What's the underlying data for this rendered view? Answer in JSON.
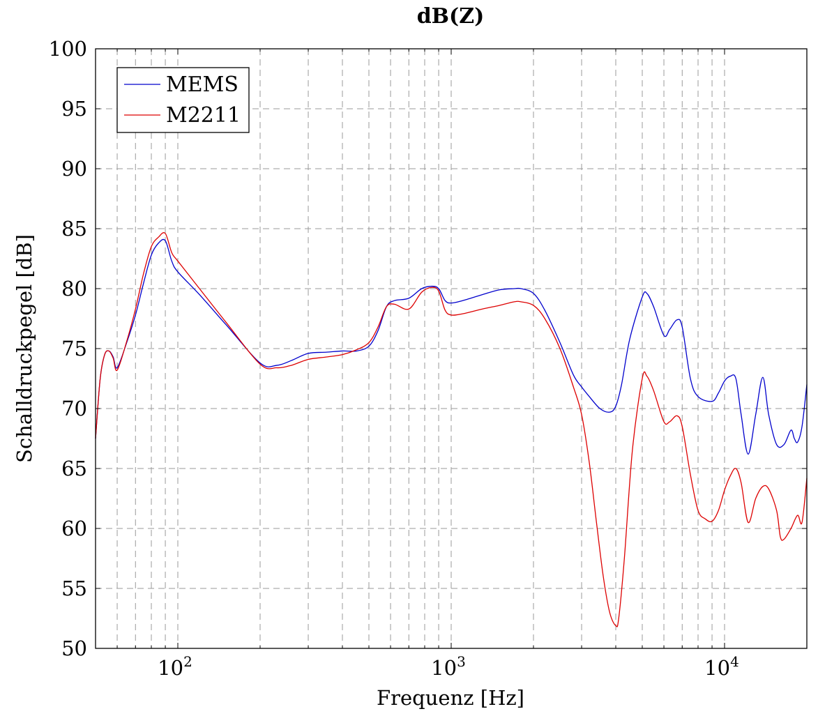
{
  "chart_data": {
    "type": "line",
    "title": "dB(Z)",
    "xlabel": "Frequenz [Hz]",
    "ylabel": "Schalldruckpegel [dB]",
    "xscale": "log",
    "xlim": [
      50,
      20000
    ],
    "ylim": [
      50,
      100
    ],
    "grid": true,
    "legend_position": "top-left",
    "y_ticks": [
      50,
      55,
      60,
      65,
      70,
      75,
      80,
      85,
      90,
      95,
      100
    ],
    "y_tick_labels": [
      "50",
      "55",
      "60",
      "65",
      "70",
      "75",
      "80",
      "85",
      "90",
      "95",
      "100"
    ],
    "x_ticks": [
      100,
      1000,
      10000
    ],
    "x_tick_labels": [
      {
        "base": "10",
        "exp": "2"
      },
      {
        "base": "10",
        "exp": "3"
      },
      {
        "base": "10",
        "exp": "4"
      }
    ],
    "series": [
      {
        "name": "MEMS",
        "color": "#0000cc",
        "x": [
          50,
          52,
          54,
          56,
          58,
          60,
          65,
          70,
          75,
          80,
          85,
          90,
          95,
          100,
          120,
          150,
          200,
          230,
          260,
          300,
          350,
          400,
          450,
          500,
          540,
          580,
          620,
          700,
          780,
          850,
          900,
          950,
          1000,
          1100,
          1300,
          1500,
          1700,
          1800,
          2000,
          2200,
          2500,
          2800,
          3000,
          3200,
          3500,
          3800,
          4000,
          4200,
          4500,
          5000,
          5200,
          5500,
          6000,
          6300,
          6700,
          7000,
          7500,
          8000,
          9000,
          9500,
          10000,
          10500,
          11000,
          11500,
          12200,
          13000,
          13800,
          14500,
          15500,
          16500,
          17500,
          18000,
          18500,
          19200,
          20000
        ],
        "y": [
          67.5,
          72.5,
          74.5,
          74.8,
          74.3,
          73.4,
          75.5,
          77.8,
          80.5,
          82.8,
          83.8,
          84.0,
          82.3,
          81.4,
          79.5,
          77.0,
          73.8,
          73.6,
          74.0,
          74.6,
          74.7,
          74.8,
          74.8,
          75.2,
          76.5,
          78.5,
          79.0,
          79.2,
          80.0,
          80.2,
          80.0,
          79.0,
          78.8,
          79.0,
          79.5,
          79.9,
          80.0,
          80.0,
          79.6,
          78.2,
          75.5,
          72.8,
          71.8,
          71.0,
          70.0,
          69.7,
          70.2,
          72.0,
          75.8,
          79.3,
          79.6,
          78.5,
          76.1,
          76.6,
          77.4,
          76.8,
          72.5,
          71.0,
          70.6,
          71.3,
          72.3,
          72.7,
          72.5,
          69.5,
          66.2,
          69.5,
          72.6,
          69.5,
          67.0,
          67.0,
          68.2,
          67.5,
          67.2,
          68.5,
          72.0
        ]
      },
      {
        "name": "M2211",
        "color": "#dd0000",
        "x": [
          50,
          52,
          54,
          56,
          58,
          60,
          65,
          70,
          75,
          80,
          85,
          90,
          95,
          100,
          120,
          150,
          200,
          230,
          260,
          300,
          350,
          400,
          450,
          500,
          540,
          580,
          620,
          700,
          780,
          850,
          900,
          950,
          1000,
          1100,
          1300,
          1500,
          1700,
          1800,
          2000,
          2200,
          2500,
          2800,
          3000,
          3200,
          3400,
          3600,
          3800,
          4000,
          4100,
          4300,
          4600,
          5000,
          5200,
          5500,
          6000,
          6300,
          6700,
          7000,
          7500,
          8000,
          8500,
          9000,
          9500,
          10000,
          10500,
          11000,
          11500,
          12200,
          13000,
          13800,
          14500,
          15500,
          16000,
          16500,
          17500,
          18500,
          19200,
          20000
        ],
        "y": [
          67.5,
          72.5,
          74.5,
          74.8,
          74.2,
          73.2,
          75.6,
          78.3,
          81.3,
          83.5,
          84.3,
          84.6,
          83.0,
          82.3,
          80.0,
          77.2,
          73.7,
          73.4,
          73.6,
          74.1,
          74.3,
          74.5,
          74.9,
          75.5,
          76.8,
          78.5,
          78.7,
          78.3,
          79.7,
          80.1,
          79.8,
          78.2,
          77.8,
          77.9,
          78.3,
          78.6,
          78.9,
          78.9,
          78.6,
          77.5,
          75.0,
          71.8,
          69.5,
          65.5,
          60.5,
          56.0,
          53.0,
          51.9,
          52.5,
          57.5,
          66.5,
          72.5,
          72.7,
          71.5,
          68.9,
          68.9,
          69.4,
          68.5,
          64.5,
          61.5,
          60.8,
          60.6,
          61.5,
          63.2,
          64.4,
          65.0,
          63.8,
          60.5,
          62.5,
          63.5,
          63.3,
          61.5,
          59.3,
          59.1,
          60.0,
          61.1,
          60.5,
          64.2
        ]
      }
    ]
  }
}
